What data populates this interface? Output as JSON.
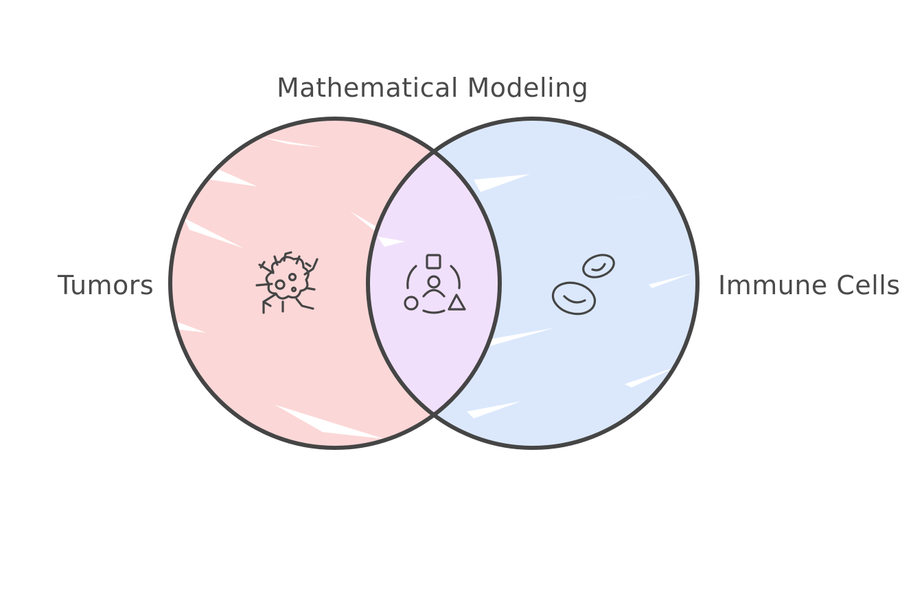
{
  "diagram": {
    "title": "Mathematical Modeling",
    "left_set": {
      "label": "Tumors",
      "icon": "cancer-cell-icon",
      "color": "#fcd7d7"
    },
    "right_set": {
      "label": "Immune Cells",
      "icon": "blood-cells-icon",
      "color": "#dbe8fc"
    },
    "intersection": {
      "icon": "shapes-person-icon",
      "color": "#f1e0fb"
    },
    "stroke_color": "#454545"
  }
}
